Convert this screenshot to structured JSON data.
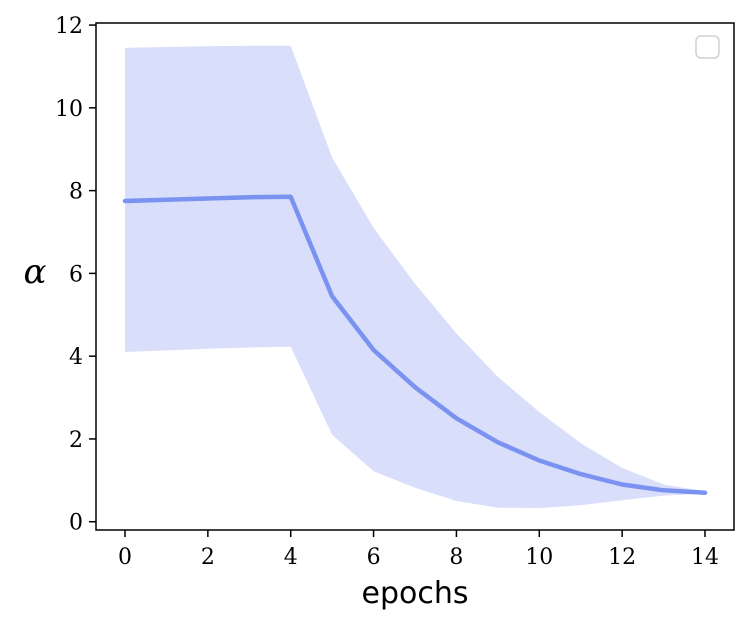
{
  "chart_data": {
    "type": "line",
    "xlabel": "epochs",
    "ylabel": "α",
    "xlim": [
      -0.7,
      14.7
    ],
    "ylim": [
      -0.2,
      12.05
    ],
    "xticks": [
      0,
      2,
      4,
      6,
      8,
      10,
      12,
      14
    ],
    "yticks": [
      0,
      2,
      4,
      6,
      8,
      10,
      12
    ],
    "grid": false,
    "legend": {
      "placement": "top-right",
      "entries": []
    },
    "colors": {
      "line": "#7b93f0",
      "band": "#d9defb",
      "axis": "#000000"
    },
    "series": [
      {
        "x": [
          0,
          1,
          2,
          3,
          4,
          5,
          6,
          7,
          8,
          9,
          10,
          11,
          12,
          13,
          14
        ],
        "y": [
          7.75,
          7.78,
          7.81,
          7.84,
          7.85,
          5.45,
          4.15,
          3.25,
          2.5,
          1.92,
          1.48,
          1.15,
          0.9,
          0.76,
          0.7
        ],
        "upper": [
          11.45,
          11.47,
          11.49,
          11.5,
          11.5,
          8.8,
          7.1,
          5.75,
          4.55,
          3.5,
          2.65,
          1.9,
          1.3,
          0.9,
          0.73
        ],
        "lower": [
          4.1,
          4.14,
          4.18,
          4.21,
          4.23,
          2.1,
          1.22,
          0.82,
          0.5,
          0.34,
          0.33,
          0.4,
          0.52,
          0.63,
          0.68
        ]
      }
    ]
  }
}
